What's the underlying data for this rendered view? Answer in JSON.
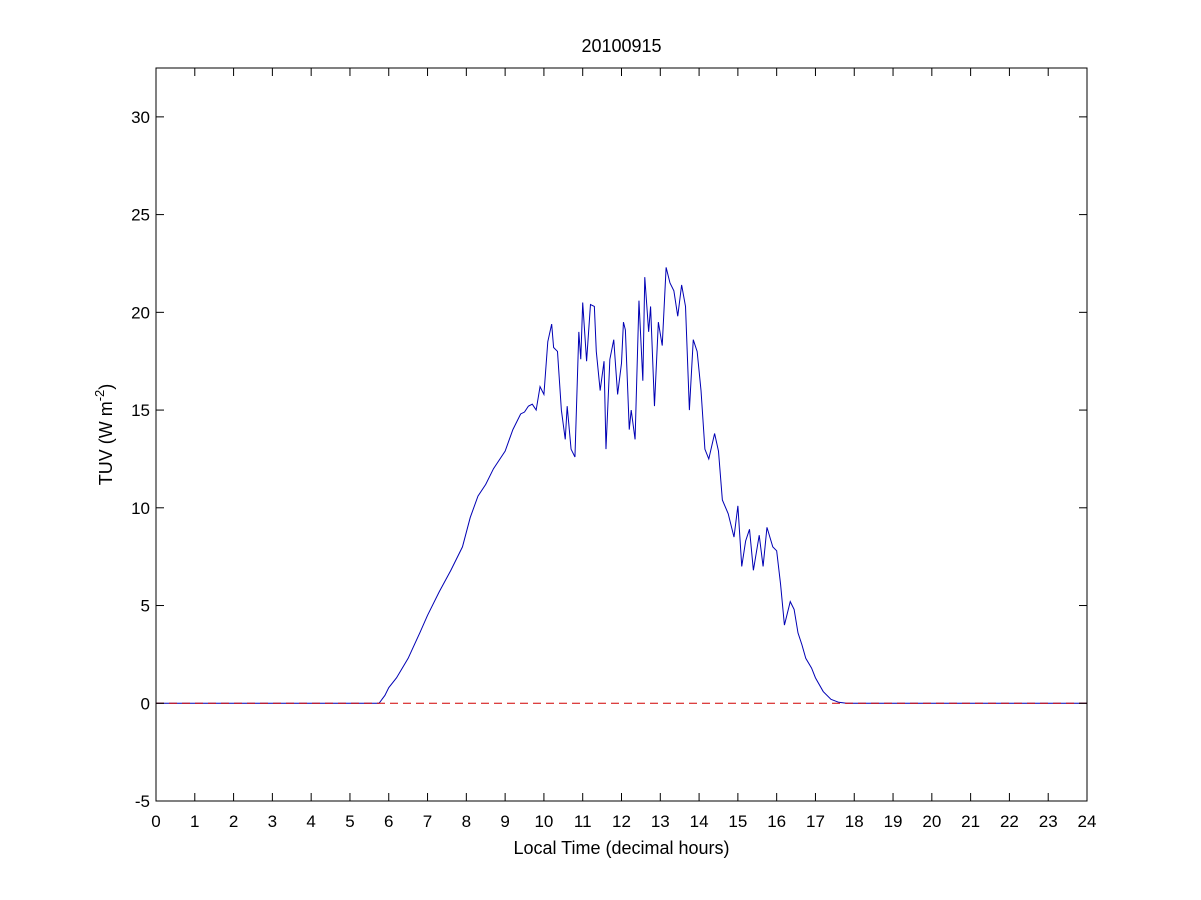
{
  "chart_data": {
    "type": "line",
    "title": "20100915",
    "xlabel": "Local Time (decimal hours)",
    "ylabel": {
      "base": "TUV (W m",
      "exponent": "-2",
      "suffix": ")"
    },
    "xlim": [
      0,
      24
    ],
    "ylim": [
      -5,
      32.5
    ],
    "xticks": [
      0,
      1,
      2,
      3,
      4,
      5,
      6,
      7,
      8,
      9,
      10,
      11,
      12,
      13,
      14,
      15,
      16,
      17,
      18,
      19,
      20,
      21,
      22,
      23,
      24
    ],
    "xtick_labels": [
      "0",
      "1",
      "2",
      "3",
      "4",
      "5",
      "6",
      "7",
      "8",
      "9",
      "10",
      "11",
      "12",
      "13",
      "14",
      "15",
      "16",
      "17",
      "18",
      "19",
      "20",
      "21",
      "22",
      "23",
      "24"
    ],
    "yticks": [
      -5,
      0,
      5,
      10,
      15,
      20,
      25,
      30
    ],
    "ytick_labels": [
      "-5",
      "0",
      "5",
      "10",
      "15",
      "20",
      "25",
      "30"
    ],
    "grid": false,
    "series": [
      {
        "color": "#0000b4",
        "style": "solid",
        "x": [
          0,
          5.75,
          5.9,
          6.0,
          6.2,
          6.5,
          6.8,
          7.0,
          7.3,
          7.6,
          7.9,
          8.1,
          8.3,
          8.5,
          8.7,
          8.9,
          9.0,
          9.2,
          9.4,
          9.5,
          9.6,
          9.7,
          9.8,
          9.9,
          10.0,
          10.1,
          10.2,
          10.25,
          10.35,
          10.45,
          10.55,
          10.6,
          10.7,
          10.8,
          10.9,
          10.95,
          11.0,
          11.1,
          11.2,
          11.3,
          11.35,
          11.45,
          11.55,
          11.6,
          11.7,
          11.8,
          11.9,
          12.0,
          12.05,
          12.1,
          12.2,
          12.25,
          12.35,
          12.45,
          12.55,
          12.6,
          12.7,
          12.75,
          12.85,
          12.95,
          13.05,
          13.15,
          13.25,
          13.35,
          13.45,
          13.55,
          13.65,
          13.75,
          13.85,
          13.95,
          14.05,
          14.15,
          14.25,
          14.4,
          14.5,
          14.6,
          14.75,
          14.9,
          15.0,
          15.1,
          15.2,
          15.3,
          15.4,
          15.55,
          15.65,
          15.75,
          15.9,
          16.0,
          16.1,
          16.2,
          16.35,
          16.45,
          16.55,
          16.65,
          16.75,
          16.9,
          17.0,
          17.2,
          17.4,
          17.6,
          17.8,
          18.0,
          18.2,
          18.35,
          18.5,
          24
        ],
        "y": [
          0,
          0,
          0.4,
          0.8,
          1.3,
          2.3,
          3.6,
          4.5,
          5.7,
          6.8,
          8.0,
          9.5,
          10.6,
          11.2,
          12.0,
          12.6,
          12.9,
          14.0,
          14.8,
          14.9,
          15.2,
          15.3,
          15.0,
          16.2,
          15.8,
          18.5,
          19.4,
          18.2,
          18.0,
          15.0,
          13.5,
          15.2,
          13.0,
          12.6,
          19.0,
          17.6,
          20.5,
          17.5,
          20.4,
          20.3,
          18.0,
          16.0,
          17.5,
          13.0,
          17.6,
          18.6,
          15.8,
          17.4,
          19.5,
          19.1,
          14.0,
          15.0,
          13.5,
          20.6,
          16.5,
          21.8,
          19.0,
          20.3,
          15.2,
          19.5,
          18.3,
          22.3,
          21.5,
          21.1,
          19.8,
          21.4,
          20.3,
          15.0,
          18.6,
          18.0,
          16.0,
          13.0,
          12.5,
          13.8,
          12.9,
          10.4,
          9.7,
          8.5,
          10.1,
          7.0,
          8.3,
          8.9,
          6.8,
          8.6,
          7.0,
          9.0,
          8.0,
          7.8,
          6.1,
          4.0,
          5.2,
          4.8,
          3.6,
          3.0,
          2.3,
          1.8,
          1.3,
          0.6,
          0.2,
          0.05,
          0,
          0,
          0,
          0,
          0,
          0
        ]
      },
      {
        "color": "#d00000",
        "style": "dashed",
        "x": [
          0,
          24
        ],
        "y": [
          0,
          0
        ]
      }
    ]
  }
}
